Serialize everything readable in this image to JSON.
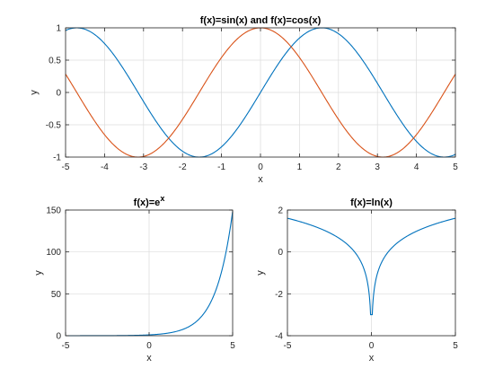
{
  "chart_data": [
    {
      "type": "line",
      "title": "f(x)=sin(x) and f(x)=cos(x)",
      "xlabel": "x",
      "ylabel": "y",
      "xlim": [
        -5,
        5
      ],
      "ylim": [
        -1,
        1
      ],
      "xticks": [
        "-5",
        "-4",
        "-3",
        "-2",
        "-1",
        "0",
        "1",
        "2",
        "3",
        "4",
        "5"
      ],
      "yticks": [
        "-1",
        "-0.5",
        "0",
        "0.5",
        "1"
      ],
      "grid": true,
      "x": [
        -5,
        -4.5,
        -4,
        -3.5,
        -3,
        -2.5,
        -2,
        -1.5,
        -1,
        -0.5,
        0,
        0.5,
        1,
        1.5,
        2,
        2.5,
        3,
        3.5,
        4,
        4.5,
        5
      ],
      "series": [
        {
          "function": "sin(x)",
          "color": "#0072bd",
          "values": [
            0.959,
            0.978,
            0.757,
            0.351,
            -0.141,
            -0.598,
            -0.909,
            -0.997,
            -0.841,
            -0.479,
            0,
            0.479,
            0.841,
            0.997,
            0.909,
            0.598,
            0.141,
            -0.351,
            -0.757,
            -0.978,
            -0.959
          ]
        },
        {
          "function": "cos(x)",
          "color": "#d95319",
          "values": [
            0.284,
            -0.211,
            -0.654,
            -0.936,
            -0.99,
            -0.801,
            -0.416,
            0.071,
            0.54,
            0.878,
            1,
            0.878,
            0.54,
            0.071,
            -0.416,
            -0.801,
            -0.99,
            -0.936,
            -0.654,
            -0.211,
            0.284
          ]
        }
      ]
    },
    {
      "type": "line",
      "title_base": "f(x)=e",
      "title_sup": "x",
      "xlabel": "x",
      "ylabel": "y",
      "xlim": [
        -5,
        5
      ],
      "ylim": [
        0,
        150
      ],
      "xticks": [
        "-5",
        "0",
        "5"
      ],
      "yticks": [
        "0",
        "50",
        "100",
        "150"
      ],
      "grid": true,
      "x": [
        -5,
        -4,
        -3,
        -2,
        -1,
        0,
        1,
        2,
        2.5,
        3,
        3.5,
        4,
        4.5,
        5
      ],
      "series": [
        {
          "function": "exp(x)",
          "color": "#0072bd",
          "values": [
            0.007,
            0.018,
            0.05,
            0.135,
            0.368,
            1,
            2.718,
            7.389,
            12.18,
            20.09,
            33.12,
            54.6,
            90.02,
            148.4
          ]
        }
      ]
    },
    {
      "type": "line",
      "title": "f(x)=ln(x)",
      "xlabel": "x",
      "ylabel": "y",
      "xlim": [
        -5,
        5
      ],
      "ylim": [
        -4,
        2
      ],
      "xticks": [
        "-5",
        "0",
        "5"
      ],
      "yticks": [
        "-4",
        "-2",
        "0",
        "2"
      ],
      "grid": true,
      "x": [
        -5,
        -4,
        -3,
        -2,
        -1,
        -0.5,
        -0.2,
        -0.1,
        -0.05,
        0.05,
        0.1,
        0.2,
        0.5,
        1,
        2,
        3,
        4,
        5
      ],
      "series": [
        {
          "function": "ln|x|",
          "color": "#0072bd",
          "values": [
            1.609,
            1.386,
            1.099,
            0.693,
            0,
            -0.693,
            -1.609,
            -2.303,
            -3.0,
            -3.0,
            -2.303,
            -1.609,
            -0.693,
            0,
            0.693,
            1.099,
            1.386,
            1.609
          ]
        }
      ]
    }
  ]
}
